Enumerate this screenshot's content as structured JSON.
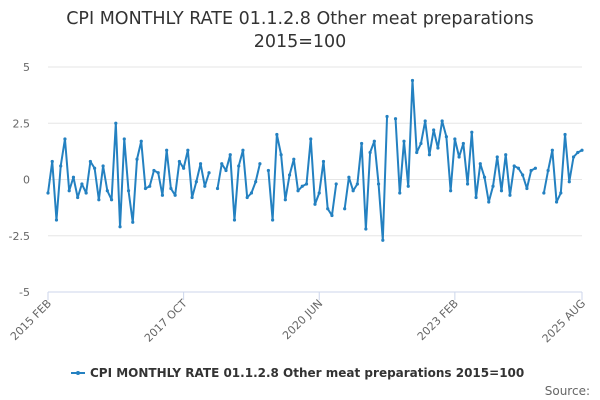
{
  "chart_data": {
    "type": "line",
    "title": [
      "CPI MONTHLY RATE 01.1.2.8 Other meat preparations",
      "2015=100"
    ],
    "ylim": [
      -5,
      5
    ],
    "yticks": [
      5,
      2.5,
      0,
      -2.5,
      -5
    ],
    "ytick_labels": [
      "5",
      "2.5",
      "0",
      "-2.5",
      "-5"
    ],
    "x_start": "2015 FEB",
    "x_end": "2025 AUG",
    "xticks": [
      {
        "label": "2015 FEB",
        "index": 0
      },
      {
        "label": "2017 OCT",
        "index": 32
      },
      {
        "label": "2020 JUN",
        "index": 64
      },
      {
        "label": "2023 FEB",
        "index": 96
      },
      {
        "label": "2025 AUG",
        "index": 126
      }
    ],
    "grid": true,
    "color": "#2481c1",
    "legend_position": "bottom",
    "series": [
      {
        "name": "CPI MONTHLY RATE 01.1.2.8 Other meat preparations 2015=100",
        "values": [
          -0.6,
          0.8,
          -1.8,
          0.6,
          1.8,
          -0.5,
          0.1,
          -0.8,
          -0.2,
          -0.6,
          0.8,
          0.5,
          -0.9,
          0.6,
          -0.5,
          -0.9,
          2.5,
          -2.1,
          1.8,
          -0.5,
          -1.9,
          0.9,
          1.7,
          -0.4,
          -0.3,
          0.4,
          0.3,
          -0.7,
          1.3,
          -0.4,
          -0.7,
          0.8,
          0.5,
          1.3,
          -0.8,
          -0.1,
          0.7,
          -0.3,
          0.3,
          null,
          -0.4,
          0.7,
          0.4,
          1.1,
          -1.8,
          0.6,
          1.3,
          -0.8,
          -0.6,
          -0.1,
          0.7,
          null,
          0.4,
          -1.8,
          2.0,
          1.1,
          -0.9,
          0.2,
          0.9,
          -0.5,
          -0.3,
          -0.2,
          1.8,
          -1.1,
          -0.6,
          0.8,
          -1.3,
          -1.6,
          -0.2,
          null,
          -1.3,
          0.1,
          -0.5,
          -0.2,
          1.6,
          -2.2,
          1.2,
          1.7,
          -0.2,
          -2.7,
          2.8,
          null,
          2.7,
          -0.6,
          1.7,
          -0.3,
          4.4,
          1.2,
          1.6,
          2.6,
          1.1,
          2.2,
          1.4,
          2.6,
          1.9,
          -0.5,
          1.8,
          1.0,
          1.6,
          -0.2,
          2.1,
          -0.8,
          0.7,
          0.1,
          -1.0,
          -0.3,
          1.0,
          -0.5,
          1.1,
          -0.7,
          0.6,
          0.5,
          0.2,
          -0.4,
          0.4,
          0.5,
          null,
          -0.6,
          0.4,
          1.3,
          -1.0,
          -0.6,
          2.0,
          -0.1,
          1.0,
          1.2,
          1.3
        ]
      }
    ]
  },
  "legend": {
    "label": "CPI MONTHLY RATE 01.1.2.8 Other meat preparations 2015=100"
  },
  "footer": {
    "source": "Source:"
  }
}
